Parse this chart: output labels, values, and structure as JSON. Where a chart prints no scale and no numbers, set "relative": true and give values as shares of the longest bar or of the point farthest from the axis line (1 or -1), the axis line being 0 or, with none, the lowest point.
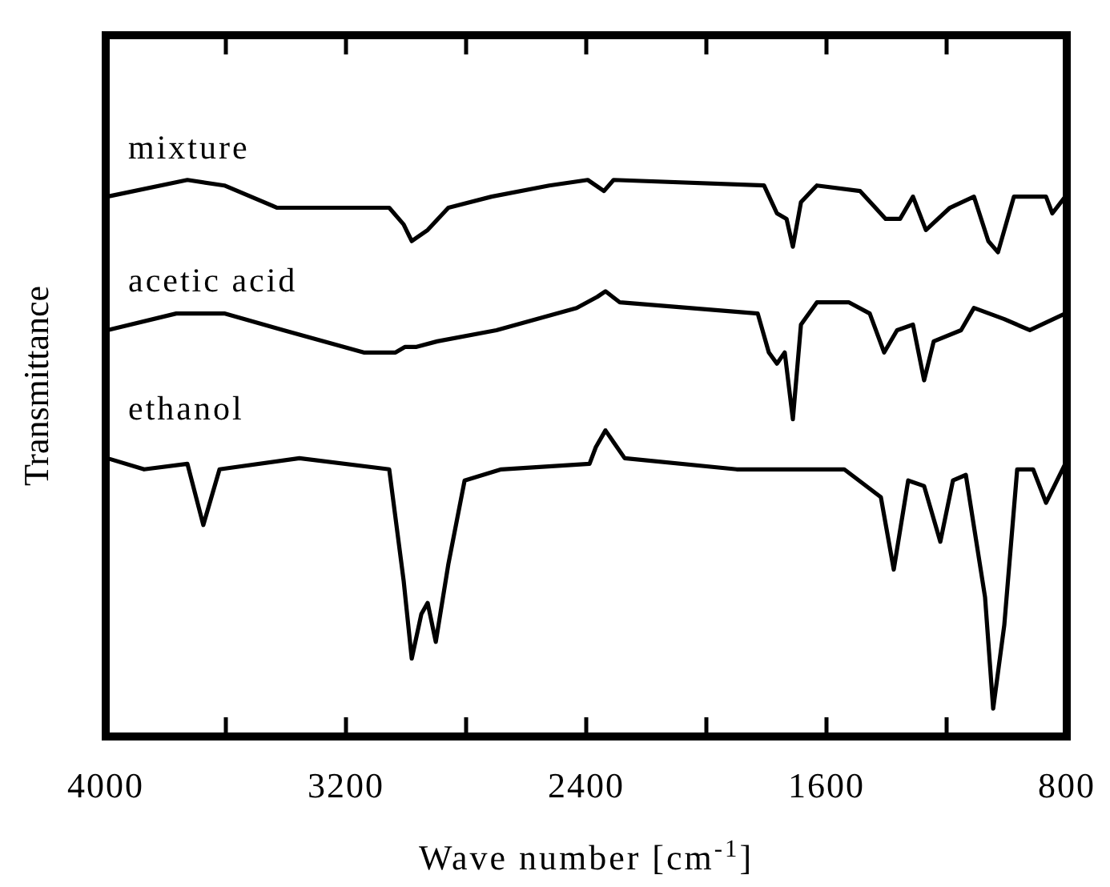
{
  "chart_data": {
    "type": "line",
    "relative": true,
    "xlabel": "Wave number [cm$^{-1}$]",
    "ylabel": "Transmittance",
    "xlim": [
      4000,
      800
    ],
    "xticks": [
      4000,
      {
        "value": 3600,
        "label": null
      },
      3200,
      {
        "value": 2800,
        "label": null
      },
      2400,
      {
        "value": 2000,
        "label": null
      },
      1600,
      {
        "value": 1200,
        "label": null
      },
      800
    ],
    "tick_labels": "x",
    "grid": false,
    "marker": "none",
    "line_style": "solid",
    "series": [
      {
        "name": "mixture",
        "color": "#000000",
        "x": [
          3995,
          3728,
          3605,
          3429,
          3285,
          3056,
          3008,
          2981,
          2928,
          2859,
          2715,
          2523,
          2395,
          2341,
          2309,
          1808,
          1765,
          1733,
          1712,
          1685,
          1632,
          1488,
          1403,
          1355,
          1312,
          1269,
          1189,
          1109,
          1061,
          1029,
          976,
          869,
          848,
          805
        ],
        "values": [
          0.97,
          1.0,
          0.99,
          0.95,
          0.95,
          0.95,
          0.92,
          0.89,
          0.91,
          0.95,
          0.97,
          0.99,
          1.0,
          0.98,
          1.0,
          0.99,
          0.94,
          0.93,
          0.88,
          0.96,
          0.99,
          0.98,
          0.93,
          0.93,
          0.97,
          0.91,
          0.95,
          0.97,
          0.89,
          0.87,
          0.97,
          0.97,
          0.94,
          0.97
        ]
      },
      {
        "name": "acetic acid",
        "color": "#000000",
        "x": [
          3995,
          3765,
          3605,
          3408,
          3141,
          3035,
          3003,
          2965,
          2896,
          2699,
          2432,
          2363,
          2336,
          2288,
          1829,
          1792,
          1765,
          1739,
          1712,
          1685,
          1632,
          1525,
          1456,
          1408,
          1365,
          1312,
          1275,
          1243,
          1152,
          1109,
          1008,
          923,
          805
        ],
        "values": [
          0.73,
          0.76,
          0.76,
          0.73,
          0.69,
          0.69,
          0.7,
          0.7,
          0.71,
          0.73,
          0.77,
          0.79,
          0.8,
          0.78,
          0.76,
          0.69,
          0.67,
          0.69,
          0.57,
          0.74,
          0.78,
          0.78,
          0.76,
          0.69,
          0.73,
          0.74,
          0.64,
          0.71,
          0.73,
          0.77,
          0.75,
          0.73,
          0.76
        ]
      },
      {
        "name": "ethanol",
        "color": "#000000",
        "x": [
          3995,
          3872,
          3728,
          3675,
          3621,
          3355,
          3056,
          3008,
          2981,
          2949,
          2928,
          2901,
          2859,
          2805,
          2683,
          2389,
          2368,
          2336,
          2272,
          1899,
          1541,
          1419,
          1376,
          1328,
          1275,
          1221,
          1179,
          1136,
          1072,
          1045,
          1008,
          965,
          912,
          869,
          805
        ],
        "values": [
          0.5,
          0.48,
          0.49,
          0.38,
          0.48,
          0.5,
          0.48,
          0.28,
          0.14,
          0.22,
          0.24,
          0.17,
          0.31,
          0.46,
          0.48,
          0.49,
          0.52,
          0.55,
          0.5,
          0.48,
          0.48,
          0.43,
          0.3,
          0.46,
          0.45,
          0.35,
          0.46,
          0.47,
          0.25,
          0.05,
          0.2,
          0.48,
          0.48,
          0.42,
          0.49
        ]
      }
    ]
  }
}
